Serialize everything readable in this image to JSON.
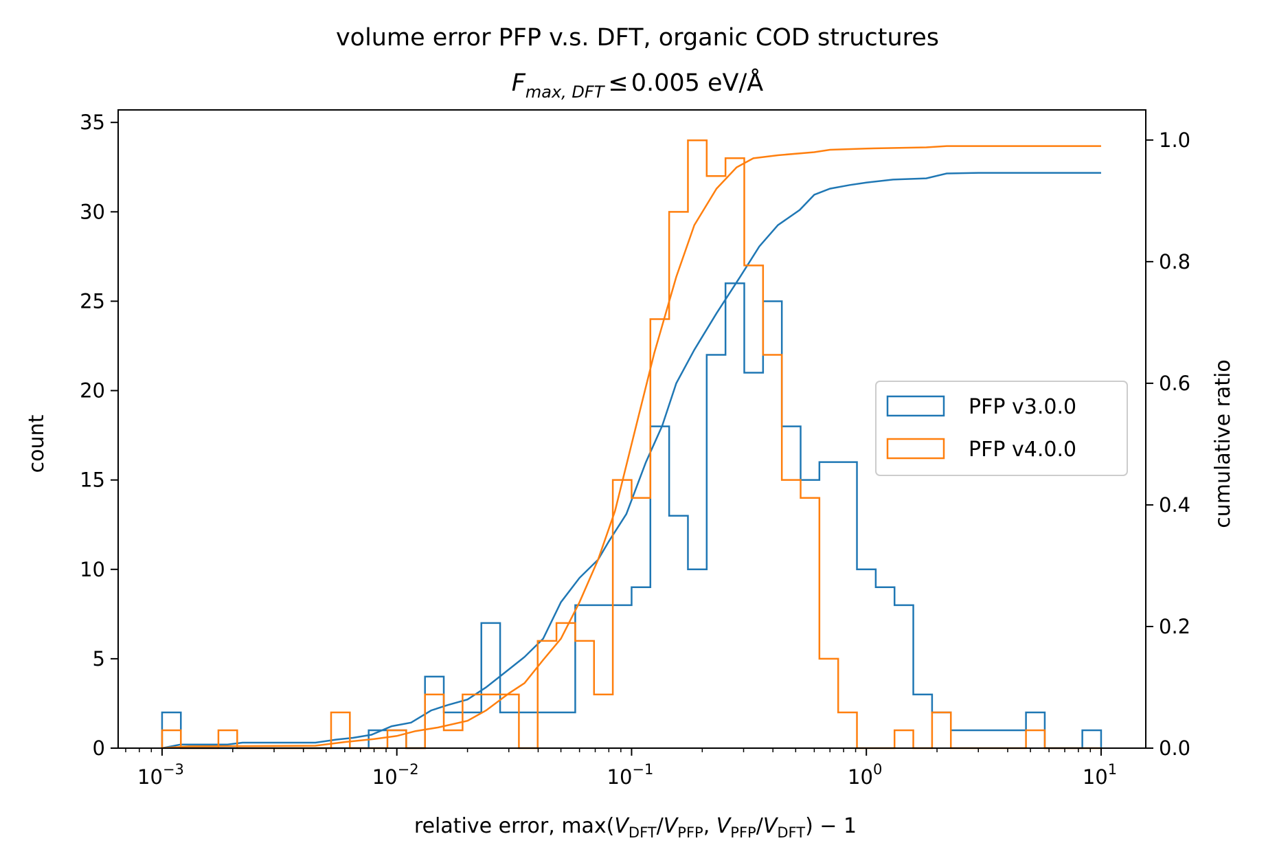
{
  "chart_data": {
    "type": "histogram",
    "title": "volume error PFP v.s. DFT, organic COD structures",
    "subtitle": {
      "var": "F",
      "sub": "max, DFT",
      "leq": "≤",
      "value": "0.005 eV/Å"
    },
    "xlabel": {
      "prefix": "relative error, max(",
      "v": "V",
      "dft": "DFT",
      "pfp": "PFP",
      "slash": "/",
      "comma": ", ",
      "suffix": ") − 1"
    },
    "ylabel": "count",
    "y2label": "cumulative ratio",
    "xscale": "log",
    "xlim": [
      0.00065,
      15.5
    ],
    "ylim": [
      0,
      35.7
    ],
    "y2lim": [
      0,
      1.0495
    ],
    "x_ticks": [
      {
        "base": "10",
        "exp": "−3",
        "value": 0.001
      },
      {
        "base": "10",
        "exp": "−2",
        "value": 0.01
      },
      {
        "base": "10",
        "exp": "−1",
        "value": 0.1
      },
      {
        "base": "10",
        "exp": "0",
        "value": 1
      },
      {
        "base": "10",
        "exp": "1",
        "value": 10
      }
    ],
    "y_ticks": [
      {
        "label": "0",
        "value": 0
      },
      {
        "label": "5",
        "value": 5
      },
      {
        "label": "10",
        "value": 10
      },
      {
        "label": "15",
        "value": 15
      },
      {
        "label": "20",
        "value": 20
      },
      {
        "label": "25",
        "value": 25
      },
      {
        "label": "30",
        "value": 30
      },
      {
        "label": "35",
        "value": 35
      }
    ],
    "y2_ticks": [
      {
        "label": "0.0",
        "value": 0.0
      },
      {
        "label": "0.2",
        "value": 0.2
      },
      {
        "label": "0.4",
        "value": 0.4
      },
      {
        "label": "0.6",
        "value": 0.6
      },
      {
        "label": "0.8",
        "value": 0.8
      },
      {
        "label": "1.0",
        "value": 1.0
      }
    ],
    "bins": {
      "log10_min": -3,
      "log10_max": 1,
      "count": 50
    },
    "legend_position": "center-right",
    "series": [
      {
        "name": "PFP v3.0.0",
        "color": "#1f77b4",
        "counts": [
          2,
          0,
          0,
          0,
          0,
          0,
          0,
          0,
          0,
          0,
          0,
          1,
          1,
          0,
          4,
          2,
          2,
          7,
          2,
          2,
          2,
          2,
          8,
          8,
          8,
          9,
          18,
          13,
          10,
          22,
          26,
          21,
          25,
          18,
          15,
          16,
          16,
          10,
          9,
          8,
          3,
          2,
          1,
          1,
          1,
          1,
          2,
          0,
          0,
          1
        ],
        "cumulative": [
          [
            0.001,
            0.0
          ],
          [
            0.0012,
            0.006
          ],
          [
            0.0019,
            0.006
          ],
          [
            0.0022,
            0.009
          ],
          [
            0.0045,
            0.009
          ],
          [
            0.0055,
            0.014
          ],
          [
            0.0065,
            0.017
          ],
          [
            0.0078,
            0.022
          ],
          [
            0.0095,
            0.036
          ],
          [
            0.0115,
            0.042
          ],
          [
            0.014,
            0.062
          ],
          [
            0.0165,
            0.071
          ],
          [
            0.02,
            0.08
          ],
          [
            0.024,
            0.1
          ],
          [
            0.029,
            0.125
          ],
          [
            0.035,
            0.15
          ],
          [
            0.042,
            0.18
          ],
          [
            0.05,
            0.24
          ],
          [
            0.06,
            0.28
          ],
          [
            0.072,
            0.31
          ],
          [
            0.08,
            0.34
          ],
          [
            0.095,
            0.385
          ],
          [
            0.115,
            0.47
          ],
          [
            0.135,
            0.53
          ],
          [
            0.155,
            0.6
          ],
          [
            0.185,
            0.655
          ],
          [
            0.23,
            0.715
          ],
          [
            0.29,
            0.775
          ],
          [
            0.35,
            0.825
          ],
          [
            0.42,
            0.86
          ],
          [
            0.52,
            0.885
          ],
          [
            0.6,
            0.91
          ],
          [
            0.7,
            0.92
          ],
          [
            0.85,
            0.926
          ],
          [
            1.0,
            0.93
          ],
          [
            1.3,
            0.935
          ],
          [
            1.8,
            0.937
          ],
          [
            2.2,
            0.945
          ],
          [
            3.0,
            0.946
          ],
          [
            10.0,
            0.946
          ]
        ]
      },
      {
        "name": "PFP v4.0.0",
        "color": "#ff7f0e",
        "counts": [
          1,
          0,
          0,
          1,
          0,
          0,
          0,
          0,
          0,
          2,
          0,
          0,
          1,
          0,
          3,
          1,
          3,
          3,
          3,
          0,
          6,
          7,
          6,
          3,
          15,
          14,
          24,
          30,
          34,
          32,
          33,
          27,
          22,
          15,
          14,
          5,
          2,
          0,
          0,
          1,
          0,
          2,
          0,
          0,
          0,
          0,
          1,
          0,
          0,
          0
        ],
        "cumulative": [
          [
            0.001,
            0.0
          ],
          [
            0.0013,
            0.003
          ],
          [
            0.0045,
            0.004
          ],
          [
            0.006,
            0.01
          ],
          [
            0.008,
            0.015
          ],
          [
            0.01,
            0.02
          ],
          [
            0.012,
            0.028
          ],
          [
            0.015,
            0.034
          ],
          [
            0.02,
            0.045
          ],
          [
            0.024,
            0.062
          ],
          [
            0.03,
            0.09
          ],
          [
            0.035,
            0.107
          ],
          [
            0.042,
            0.145
          ],
          [
            0.05,
            0.18
          ],
          [
            0.06,
            0.24
          ],
          [
            0.072,
            0.31
          ],
          [
            0.085,
            0.39
          ],
          [
            0.1,
            0.5
          ],
          [
            0.125,
            0.65
          ],
          [
            0.155,
            0.775
          ],
          [
            0.185,
            0.86
          ],
          [
            0.23,
            0.92
          ],
          [
            0.28,
            0.955
          ],
          [
            0.33,
            0.97
          ],
          [
            0.42,
            0.975
          ],
          [
            0.6,
            0.98
          ],
          [
            0.7,
            0.984
          ],
          [
            1.0,
            0.986
          ],
          [
            1.8,
            0.988
          ],
          [
            2.2,
            0.99
          ],
          [
            10.0,
            0.99
          ]
        ]
      }
    ]
  }
}
